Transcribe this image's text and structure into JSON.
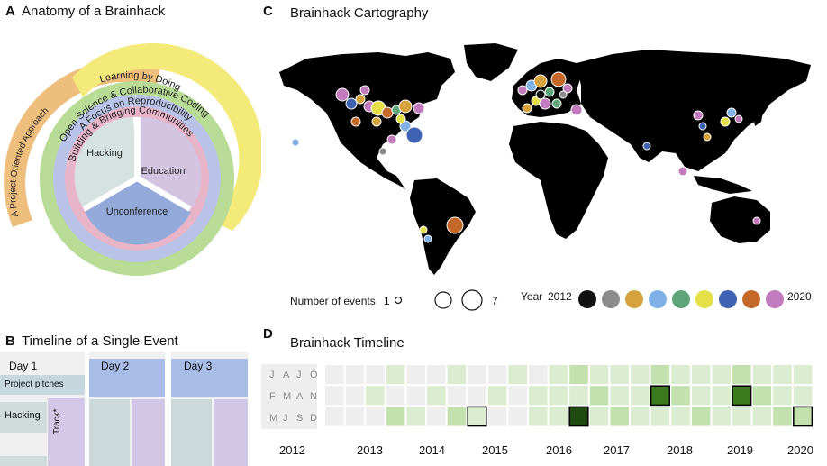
{
  "panels": {
    "a": {
      "letter": "A",
      "title": "Anatomy of a Brainhack"
    },
    "b": {
      "letter": "B",
      "title": "Timeline of a Single Event"
    },
    "c": {
      "letter": "C",
      "title": "Brainhack Cartography"
    },
    "d": {
      "letter": "D",
      "title": "Brainhack Timeline"
    }
  },
  "anatomy": {
    "rings": [
      {
        "label": "A Project-Oriented Approach",
        "color": "#eebe7d"
      },
      {
        "label": "Learning by Doing",
        "color": "#f3ea7a"
      },
      {
        "label": "Open Science & Collaborative Coding",
        "color": "#b8dc96"
      },
      {
        "label": "A Focus on Reproducibility",
        "color": "#b9c3e8"
      },
      {
        "label": "Building & Bridging Communities",
        "color": "#e8b4c8"
      }
    ],
    "sectors": [
      {
        "label": "Hacking",
        "color": "#d6e2df"
      },
      {
        "label": "Education",
        "color": "#d3c4e2"
      },
      {
        "label": "Unconference",
        "color": "#93a9da"
      }
    ]
  },
  "event_timeline": {
    "days": [
      "Day 1",
      "Day 2",
      "Day 3"
    ],
    "rows": [
      "Project pitches",
      "Hacking"
    ],
    "track_label": "Track*",
    "colors": {
      "pitch": "#a8bde6",
      "hack": "#ccd9da",
      "track": "#d2c6e6",
      "bg": "#f0f0f0"
    }
  },
  "map": {
    "legend": {
      "size_title": "Number of events",
      "size_min": "1",
      "size_max": "7",
      "year_title": "Year",
      "year_start": "2012",
      "year_end": "2020",
      "year_colors": [
        "#111111",
        "#8c8c8c",
        "#d6a23c",
        "#7fb1e6",
        "#5ea579",
        "#e5e04a",
        "#3f63b4",
        "#c4682a",
        "#c27bbd"
      ]
    }
  },
  "timeline": {
    "month_rows": [
      [
        "J",
        "A",
        "J",
        "O"
      ],
      [
        "F",
        "M",
        "A",
        "N"
      ],
      [
        "M",
        "J",
        "S",
        "D"
      ]
    ],
    "years": [
      "2012",
      "2013",
      "2014",
      "2015",
      "2016",
      "2017",
      "2018",
      "2019",
      "2020"
    ]
  }
}
